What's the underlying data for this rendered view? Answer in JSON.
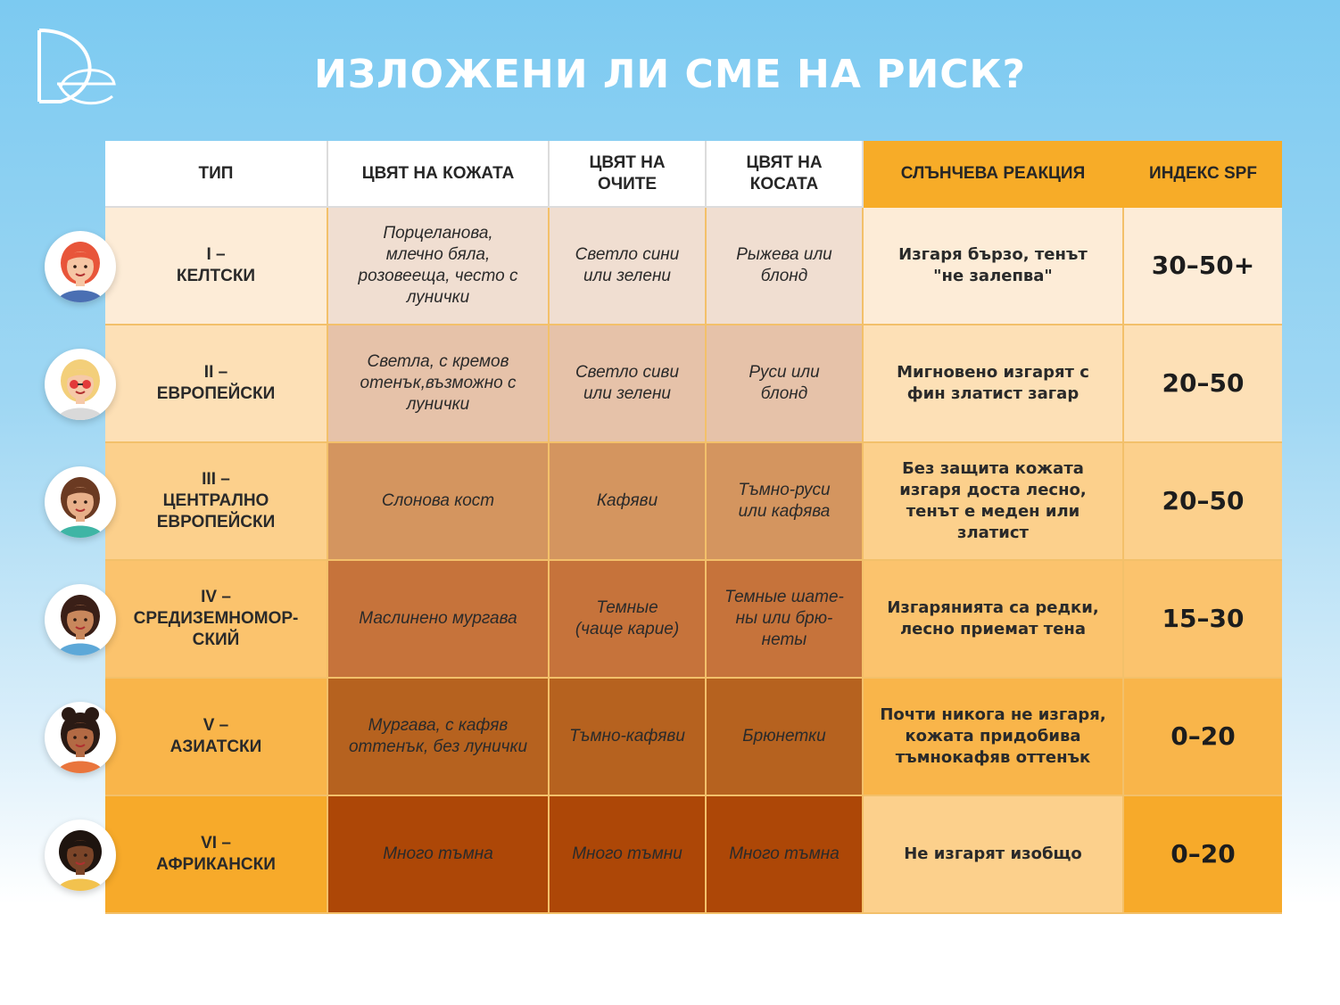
{
  "title": "ИЗЛОЖЕНИ ЛИ СМЕ НА РИСК?",
  "logo": {
    "icon": "de-monogram-logo",
    "color": "#ffffff"
  },
  "headers": {
    "type": "ТИП",
    "skin": "ЦВЯТ НА КОЖАТА",
    "eyes": "ЦВЯТ НА\nОЧИТЕ",
    "hair": "ЦВЯТ НА\nКОСАТА",
    "reaction": "СЛЪНЧЕВА РЕАКЦИЯ",
    "spf": "ИНДЕКС SPF"
  },
  "colors": {
    "header_white": "#ffffff",
    "header_orange": "#f7ac28",
    "accent": "#f3c06a"
  },
  "rows": [
    {
      "type": "I –\nКЕЛТСКИ",
      "skin": "Порцеланова,\nмлечно бяла,\nрозовееща, често с\nлунички",
      "eyes": "Светло сини\nили зелени",
      "hair": "Рыжева или\nблонд",
      "reaction": "Изгаря бързо, тенът\n\"не залепва\"",
      "spf": "30–50+",
      "avatar_icon": "red-haired-woman-avatar-icon",
      "colors": {
        "type_bg": "#fdecd7",
        "swatch": "#f0ded1",
        "reaction_bg": "#fdecd7",
        "spf_bg": "#fdecd7"
      }
    },
    {
      "type": "II –\nЕВРОПЕЙСКИ",
      "skin": "Светла, с кремов\nотенък,възможно с\nлунички",
      "eyes": "Светло сиви\nили зелени",
      "hair": "Руси или\nблонд",
      "reaction": "Мигновено изгарят с\nфин златист загар",
      "spf": "20–50",
      "avatar_icon": "blonde-woman-sunglasses-avatar-icon",
      "colors": {
        "type_bg": "#fde0b6",
        "swatch": "#e6c2a9",
        "reaction_bg": "#fde0b6",
        "spf_bg": "#fde0b6"
      }
    },
    {
      "type": "III –\nЦЕНТРАЛНО\nЕВРОПЕЙСКИ",
      "skin": "Слонова кост",
      "eyes": "Кафяви",
      "hair": "Тъмно-руси\nили кафява",
      "reaction": "Без защита кожата\nизгаря доста лесно,\nтенът е меден или\nзлатист",
      "spf": "20–50",
      "avatar_icon": "brunette-woman-avatar-icon",
      "colors": {
        "type_bg": "#fcd08c",
        "swatch": "#d4955f",
        "reaction_bg": "#fcd08c",
        "spf_bg": "#fcd08c"
      }
    },
    {
      "type": "IV –\nСРЕДИЗЕМНОМОР-\nСКИЙ",
      "skin": "Маслинено мургава",
      "eyes": "Темные\n(чаще карие)",
      "hair": "Темные шате-\nны или брю-\nнеты",
      "reaction": "Изгарянията са редки,\nлесно приемат тена",
      "spf": "15–30",
      "avatar_icon": "dark-haired-woman-avatar-icon",
      "colors": {
        "type_bg": "#fbc36d",
        "swatch": "#c6733b",
        "reaction_bg": "#fbc36d",
        "spf_bg": "#fbc36d"
      }
    },
    {
      "type": "V –\nАЗИАТСКИ",
      "skin": "Мургава, с кафяв\nоттенък, без лунички",
      "eyes": "Тъмно-кафяви",
      "hair": "Брюнетки",
      "reaction": "Почти никога не изгаря,\nкожата придобива\nтъмнокафяв оттенък",
      "spf": "0–20",
      "avatar_icon": "woman-with-buns-avatar-icon",
      "colors": {
        "type_bg": "#f9b54a",
        "swatch": "#b6621f",
        "reaction_bg": "#f9b54a",
        "spf_bg": "#f9b54a"
      }
    },
    {
      "type": "VI –\nАФРИКАНСКИ",
      "skin": "Много тъмна",
      "eyes": "Много тъмни",
      "hair": "Много тъмна",
      "reaction": "Не изгарят изобщо",
      "spf": "0–20",
      "avatar_icon": "curly-haired-woman-avatar-icon",
      "colors": {
        "type_bg": "#f7aa2a",
        "swatch": "#ad4707",
        "reaction_bg": "#fcd08c",
        "spf_bg": "#f7aa2a"
      }
    }
  ]
}
